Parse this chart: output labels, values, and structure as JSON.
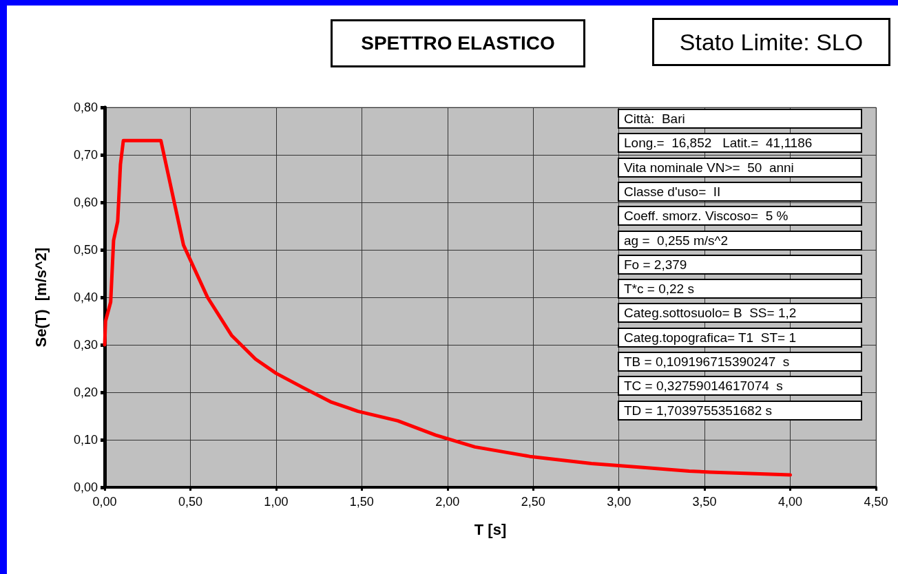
{
  "chart_data": {
    "type": "line",
    "title": "SPETTRO ELASTICO",
    "subtitle": "Stato Limite: SLO",
    "xlabel": "T [s]",
    "ylabel": "Se(T)  [m/s^2]",
    "x": [
      0,
      0.005,
      0.035,
      0.052,
      0.076,
      0.092,
      0.109,
      0.328,
      0.46,
      0.6,
      0.74,
      0.88,
      1.0,
      1.157,
      1.318,
      1.478,
      1.71,
      1.93,
      2.16,
      2.48,
      2.62,
      2.84,
      3.13,
      3.41,
      3.53,
      4.0
    ],
    "series": [
      {
        "color": "#ff0000",
        "values": [
          0.3,
          0.35,
          0.39,
          0.52,
          0.56,
          0.68,
          0.73,
          0.73,
          0.51,
          0.4,
          0.32,
          0.27,
          0.24,
          0.21,
          0.18,
          0.16,
          0.14,
          0.11,
          0.085,
          0.065,
          0.059,
          0.05,
          0.042,
          0.034,
          0.032,
          0.026
        ]
      }
    ],
    "xlim": [
      0,
      4.5
    ],
    "xticks": [
      {
        "value": 0,
        "label": "0,00"
      },
      {
        "value": 0.5,
        "label": "0,50"
      },
      {
        "value": 1,
        "label": "1,00"
      },
      {
        "value": 1.5,
        "label": "1,50"
      },
      {
        "value": 2,
        "label": "2,00"
      },
      {
        "value": 2.5,
        "label": "2,50"
      },
      {
        "value": 3,
        "label": "3,00"
      },
      {
        "value": 3.5,
        "label": "3,50"
      },
      {
        "value": 4,
        "label": "4,00"
      },
      {
        "value": 4.5,
        "label": "4,50"
      }
    ],
    "ylim": [
      0,
      0.8
    ],
    "yticks": [
      {
        "value": 0,
        "label": "0,00"
      },
      {
        "value": 0.1,
        "label": "0,10"
      },
      {
        "value": 0.2,
        "label": "0,20"
      },
      {
        "value": 0.3,
        "label": "0,30"
      },
      {
        "value": 0.4,
        "label": "0,40"
      },
      {
        "value": 0.5,
        "label": "0,50"
      },
      {
        "value": 0.6,
        "label": "0,60"
      },
      {
        "value": 0.7,
        "label": "0,70"
      },
      {
        "value": 0.8,
        "label": "0,80"
      }
    ],
    "grid": true,
    "marker": "none",
    "line_style": "solid",
    "annotations": [
      "Città:  Bari",
      "Long.=  16,852   Latit.=  41,1186",
      "Vita nominale VN>=  50  anni",
      "Classe d'uso=  II",
      "Coeff. smorz. Viscoso=  5 %",
      "ag =  0,255 m/s^2",
      "Fo = 2,379",
      "T*c = 0,22 s",
      "Categ.sottosuolo= B  SS= 1,2",
      "Categ.topografica= T1  ST= 1",
      "TB = 0,109196715390247  s",
      "TC = 0,32759014617074  s",
      "TD = 1,7039755351682 s"
    ]
  }
}
